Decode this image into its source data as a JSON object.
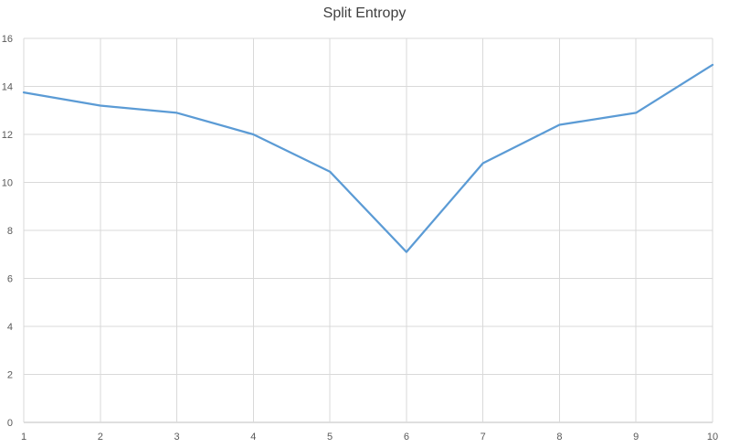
{
  "chart_data": {
    "type": "line",
    "title": "Split Entropy",
    "xlabel": "",
    "ylabel": "",
    "x": [
      1,
      2,
      3,
      4,
      5,
      6,
      7,
      8,
      9,
      10
    ],
    "series": [
      {
        "values": [
          13.75,
          13.2,
          12.9,
          12.0,
          10.45,
          7.1,
          10.8,
          12.4,
          12.9,
          14.9
        ]
      }
    ],
    "xlim": [
      1,
      10
    ],
    "ylim": [
      0,
      16
    ],
    "yticks": [
      0,
      2,
      4,
      6,
      8,
      10,
      12,
      14,
      16
    ],
    "xticks": [
      1,
      2,
      3,
      4,
      5,
      6,
      7,
      8,
      9,
      10
    ],
    "grid": true,
    "legend": "none",
    "colors": {
      "line": "#5b9bd5",
      "grid": "#d9d9d9",
      "axis_text": "#595959",
      "title": "#404040"
    }
  }
}
